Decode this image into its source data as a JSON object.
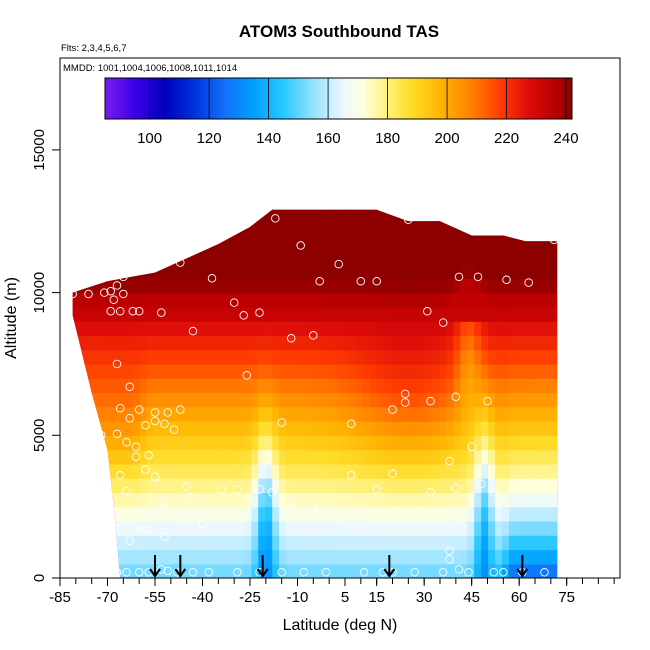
{
  "chart_data": {
    "type": "heatmap",
    "title": "ATOM3 Southbound TAS",
    "flights_label": "Flts: 2,3,4,5,6,7",
    "dates_label": "MMDD: 1001,1004,1006,1008,1011,1014",
    "xlabel": "Latitude (deg N)",
    "ylabel": "Altitude (m)",
    "xlim": [
      -85,
      85
    ],
    "ylim": [
      0,
      18000
    ],
    "x_ticks": [
      -85,
      -70,
      -55,
      -40,
      -25,
      -10,
      5,
      15,
      30,
      45,
      60,
      75
    ],
    "x_tick_labels": [
      "-85",
      "-70",
      "-55",
      "-40",
      "-25",
      "-10",
      "5",
      "15",
      "30",
      "45",
      "60",
      "75"
    ],
    "y_ticks": [
      0,
      5000,
      10000,
      15000
    ],
    "y_tick_labels": [
      "0",
      "5000",
      "10000",
      "15000"
    ],
    "colorbar": {
      "min": 85,
      "max": 242,
      "ticks": [
        100,
        120,
        140,
        160,
        180,
        200,
        220,
        240
      ],
      "tick_labels": [
        "100",
        "120",
        "140",
        "160",
        "180",
        "200",
        "220",
        "240"
      ]
    },
    "top_profile": [
      [
        -81,
        10000
      ],
      [
        -70,
        10400
      ],
      [
        -55,
        10700
      ],
      [
        -45,
        11200
      ],
      [
        -35,
        11700
      ],
      [
        -25,
        12300
      ],
      [
        -18,
        12900
      ],
      [
        -10,
        12900
      ],
      [
        5,
        12900
      ],
      [
        15,
        12900
      ],
      [
        25,
        12500
      ],
      [
        35,
        12500
      ],
      [
        45,
        12000
      ],
      [
        55,
        12000
      ],
      [
        62,
        11800
      ],
      [
        70,
        11800
      ]
    ],
    "bottom_profile": [
      [
        -81,
        9200
      ],
      [
        -75,
        6500
      ],
      [
        -70,
        4500
      ],
      [
        -68,
        2500
      ],
      [
        -66,
        200
      ],
      [
        72,
        200
      ]
    ],
    "observations": [
      [
        -81,
        9950
      ],
      [
        -76,
        9950
      ],
      [
        -71,
        10000
      ],
      [
        -69,
        10050
      ],
      [
        -67,
        10250
      ],
      [
        -65,
        10550
      ],
      [
        -57,
        10900
      ],
      [
        -47,
        11050
      ],
      [
        -37,
        10500
      ],
      [
        -30,
        9650
      ],
      [
        -27,
        9200
      ],
      [
        -22,
        9300
      ],
      [
        -17,
        12600
      ],
      [
        -9,
        11650
      ],
      [
        -3,
        10400
      ],
      [
        3,
        11000
      ],
      [
        10,
        10400
      ],
      [
        15,
        10400
      ],
      [
        25,
        12550
      ],
      [
        31,
        9350
      ],
      [
        36,
        8950
      ],
      [
        41,
        10550
      ],
      [
        47,
        10550
      ],
      [
        56,
        10450
      ],
      [
        63,
        10350
      ],
      [
        71,
        11850
      ],
      [
        -65,
        9950
      ],
      [
        -68,
        9750
      ],
      [
        -69,
        9350
      ],
      [
        -66,
        9350
      ],
      [
        -62,
        9350
      ],
      [
        -60,
        9350
      ],
      [
        -53,
        9300
      ],
      [
        -43,
        8650
      ],
      [
        -5,
        8500
      ],
      [
        -12,
        8400
      ],
      [
        -67,
        7500
      ],
      [
        -63,
        6700
      ],
      [
        -60,
        5900
      ],
      [
        -55,
        5800
      ],
      [
        -51,
        5800
      ],
      [
        -47,
        5900
      ],
      [
        -58,
        5350
      ],
      [
        -55,
        5500
      ],
      [
        -52,
        5400
      ],
      [
        -63,
        5600
      ],
      [
        -66,
        5950
      ],
      [
        -72,
        5000
      ],
      [
        -67,
        5050
      ],
      [
        -64,
        4750
      ],
      [
        -61,
        4600
      ],
      [
        -57,
        4300
      ],
      [
        -61,
        4250
      ],
      [
        -58,
        3800
      ],
      [
        -55,
        3550
      ],
      [
        -66,
        3600
      ],
      [
        -64,
        3050
      ],
      [
        -49,
        5200
      ],
      [
        -26,
        7100
      ],
      [
        -15,
        5450
      ],
      [
        7,
        5400
      ],
      [
        20,
        5900
      ],
      [
        24,
        6450
      ],
      [
        24,
        6150
      ],
      [
        32,
        6200
      ],
      [
        40,
        6350
      ],
      [
        45,
        4600
      ],
      [
        38,
        4100
      ],
      [
        50,
        6200
      ],
      [
        -45,
        3200
      ],
      [
        -44,
        2800
      ],
      [
        -34,
        3100
      ],
      [
        -29,
        3100
      ],
      [
        -22,
        3100
      ],
      [
        -18,
        3000
      ],
      [
        -12,
        2600
      ],
      [
        -5,
        2500
      ],
      [
        7,
        3600
      ],
      [
        15,
        3100
      ],
      [
        20,
        3650
      ],
      [
        32,
        3000
      ],
      [
        40,
        3150
      ],
      [
        48,
        3300
      ],
      [
        52,
        3000
      ],
      [
        -52,
        2600
      ],
      [
        -47,
        2000
      ],
      [
        -40,
        1900
      ],
      [
        -58,
        1700
      ],
      [
        -52,
        1450
      ],
      [
        -63,
        1300
      ],
      [
        38,
        650
      ],
      [
        38,
        950
      ],
      [
        41,
        300
      ],
      [
        -67,
        200
      ],
      [
        -64,
        200
      ],
      [
        -60,
        200
      ],
      [
        -57,
        200
      ],
      [
        -53,
        300
      ],
      [
        -51,
        250
      ],
      [
        -48,
        200
      ],
      [
        -43,
        200
      ],
      [
        -38,
        200
      ],
      [
        -29,
        200
      ],
      [
        -22,
        200
      ],
      [
        -15,
        200
      ],
      [
        -8,
        200
      ],
      [
        -1,
        200
      ],
      [
        11,
        200
      ],
      [
        17,
        200
      ],
      [
        20,
        200
      ],
      [
        27,
        200
      ],
      [
        36,
        200
      ],
      [
        44,
        200
      ],
      [
        52,
        200
      ],
      [
        55,
        200
      ],
      [
        61,
        200
      ],
      [
        68,
        200
      ],
      [
        72,
        3300
      ]
    ],
    "arrow_latitudes": [
      -55,
      -47,
      -21,
      19,
      61
    ]
  }
}
